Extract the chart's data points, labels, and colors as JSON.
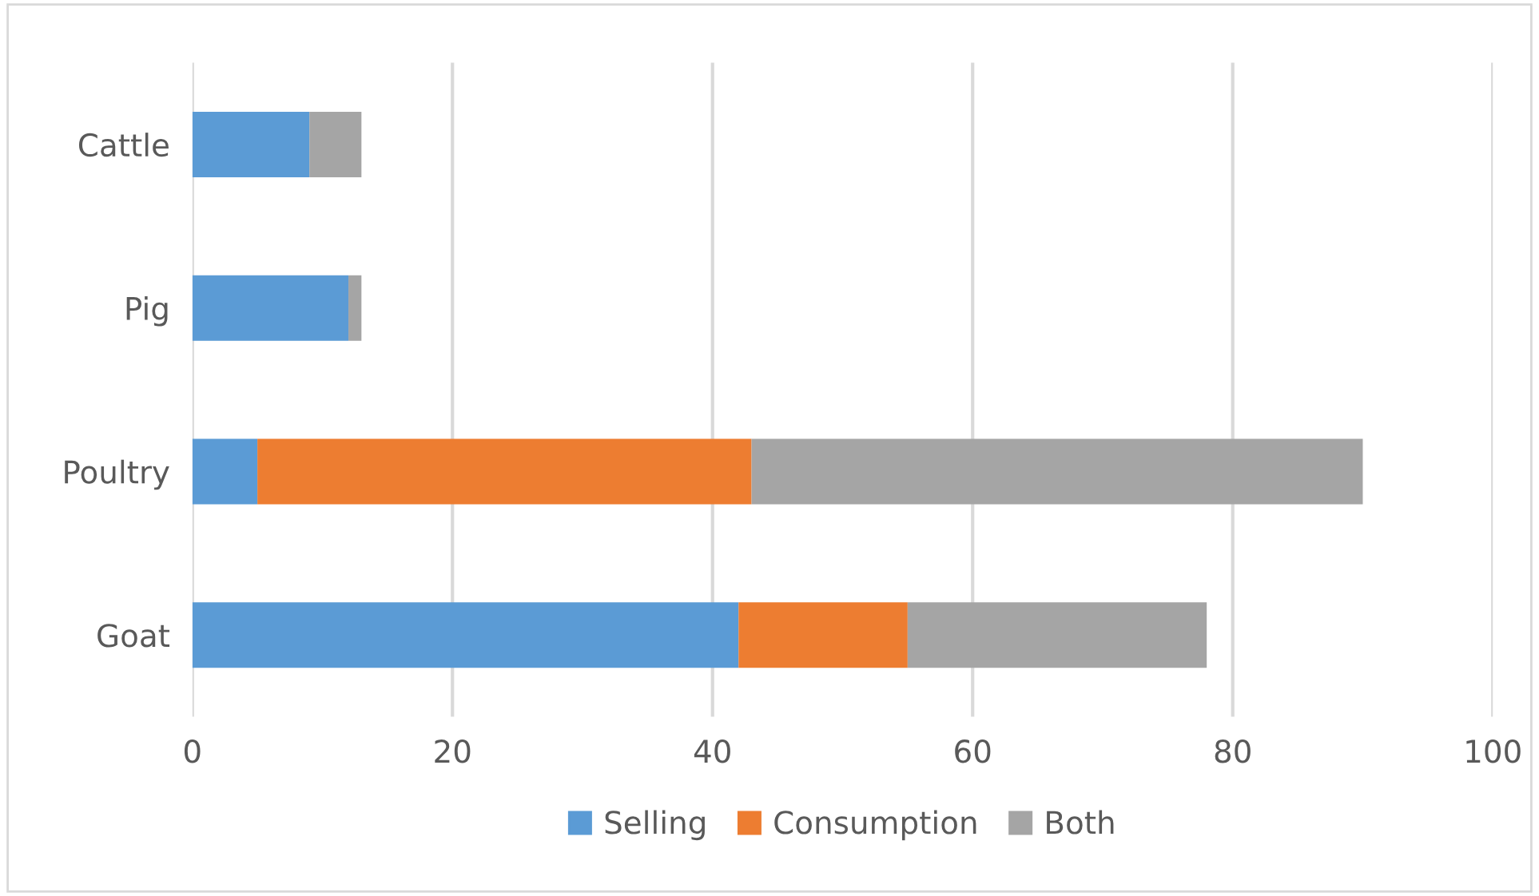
{
  "chart_data": {
    "type": "bar",
    "orientation": "horizontal",
    "stacked": true,
    "categories": [
      "Cattle",
      "Pig",
      "Poultry",
      "Goat"
    ],
    "series": [
      {
        "name": "Selling",
        "color": "#5b9bd5",
        "values": [
          9,
          12,
          5,
          42
        ]
      },
      {
        "name": "Consumption",
        "color": "#ed7d31",
        "values": [
          null,
          null,
          38,
          13
        ]
      },
      {
        "name": "Both",
        "color": "#a5a5a5",
        "values": [
          4,
          1,
          47,
          23
        ]
      }
    ],
    "xlim": [
      0,
      100
    ],
    "xticks": [
      0,
      20,
      40,
      60,
      80,
      100
    ],
    "grid": "x",
    "legend": "bottom"
  }
}
